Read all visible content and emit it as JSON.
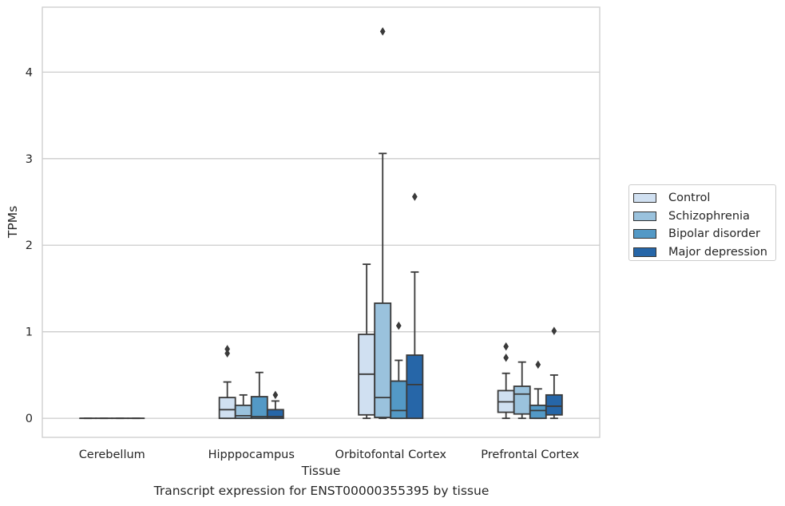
{
  "chart_data": {
    "type": "box",
    "title": "",
    "caption": "Transcript expression for ENST00000355395 by tissue",
    "xlabel": "Tissue",
    "ylabel": "TPMs",
    "ylim": [
      -0.22,
      4.75
    ],
    "yticks": [
      "0",
      "1",
      "2",
      "3",
      "4"
    ],
    "grid": "horizontal",
    "legend_position": "right",
    "categories": [
      "Cerebellum",
      "Hipppocampus",
      "Orbitofontal Cortex",
      "Prefrontal Cortex"
    ],
    "series": [
      {
        "name": "Control",
        "color": "#d0e0f1",
        "boxes": [
          {
            "q1": 0,
            "median": 0,
            "q3": 0,
            "whisker_low": 0,
            "whisker_high": 0,
            "outliers": []
          },
          {
            "q1": 0.0,
            "median": 0.1,
            "q3": 0.24,
            "whisker_low": 0.0,
            "whisker_high": 0.42,
            "outliers": [
              0.75,
              0.8
            ]
          },
          {
            "q1": 0.04,
            "median": 0.51,
            "q3": 0.97,
            "whisker_low": 0.0,
            "whisker_high": 1.78,
            "outliers": []
          },
          {
            "q1": 0.07,
            "median": 0.19,
            "q3": 0.32,
            "whisker_low": 0.0,
            "whisker_high": 0.52,
            "outliers": [
              0.7,
              0.83
            ]
          }
        ]
      },
      {
        "name": "Schizophrenia",
        "color": "#9ac2dd",
        "boxes": [
          {
            "q1": 0,
            "median": 0,
            "q3": 0,
            "whisker_low": 0,
            "whisker_high": 0,
            "outliers": []
          },
          {
            "q1": 0.0,
            "median": 0.03,
            "q3": 0.15,
            "whisker_low": 0.0,
            "whisker_high": 0.27,
            "outliers": []
          },
          {
            "q1": 0.01,
            "median": 0.24,
            "q3": 1.33,
            "whisker_low": 0.0,
            "whisker_high": 3.06,
            "outliers": [
              4.47
            ]
          },
          {
            "q1": 0.05,
            "median": 0.28,
            "q3": 0.37,
            "whisker_low": 0.0,
            "whisker_high": 0.65,
            "outliers": []
          }
        ]
      },
      {
        "name": "Bipolar disorder",
        "color": "#5399c6",
        "boxes": [
          {
            "q1": 0,
            "median": 0,
            "q3": 0,
            "whisker_low": 0,
            "whisker_high": 0,
            "outliers": []
          },
          {
            "q1": 0.0,
            "median": 0.02,
            "q3": 0.25,
            "whisker_low": 0.0,
            "whisker_high": 0.53,
            "outliers": []
          },
          {
            "q1": 0.0,
            "median": 0.09,
            "q3": 0.43,
            "whisker_low": 0.0,
            "whisker_high": 0.67,
            "outliers": [
              1.07
            ]
          },
          {
            "q1": 0.0,
            "median": 0.09,
            "q3": 0.15,
            "whisker_low": 0.0,
            "whisker_high": 0.34,
            "outliers": [
              0.62
            ]
          }
        ]
      },
      {
        "name": "Major depression",
        "color": "#2666a8",
        "boxes": [
          {
            "q1": 0,
            "median": 0,
            "q3": 0,
            "whisker_low": 0,
            "whisker_high": 0,
            "outliers": []
          },
          {
            "q1": 0.0,
            "median": 0.02,
            "q3": 0.1,
            "whisker_low": 0.0,
            "whisker_high": 0.2,
            "outliers": [
              0.27
            ]
          },
          {
            "q1": 0.0,
            "median": 0.39,
            "q3": 0.73,
            "whisker_low": 0.0,
            "whisker_high": 1.69,
            "outliers": [
              2.56
            ]
          },
          {
            "q1": 0.04,
            "median": 0.14,
            "q3": 0.27,
            "whisker_low": 0.0,
            "whisker_high": 0.5,
            "outliers": [
              1.01
            ]
          }
        ]
      }
    ]
  }
}
